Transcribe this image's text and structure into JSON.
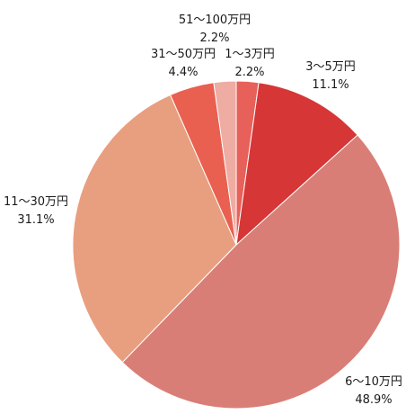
{
  "chart_data": {
    "type": "pie",
    "slices": [
      {
        "label": "1〜3万円",
        "value": 2.2,
        "display": "2.2%",
        "color": "#e8605a"
      },
      {
        "label": "3〜5万円",
        "value": 11.1,
        "display": "11.1%",
        "color": "#d63636"
      },
      {
        "label": "6〜10万円",
        "value": 48.9,
        "display": "48.9%",
        "color": "#d97e76"
      },
      {
        "label": "11〜30万円",
        "value": 31.1,
        "display": "31.1%",
        "color": "#e89f80"
      },
      {
        "label": "31〜50万円",
        "value": 4.4,
        "display": "4.4%",
        "color": "#e96050"
      },
      {
        "label": "51〜100万円",
        "value": 2.2,
        "display": "2.2%",
        "color": "#eeaca3"
      }
    ],
    "start_angle_deg": 0,
    "direction": "clockwise",
    "legend": "none"
  }
}
